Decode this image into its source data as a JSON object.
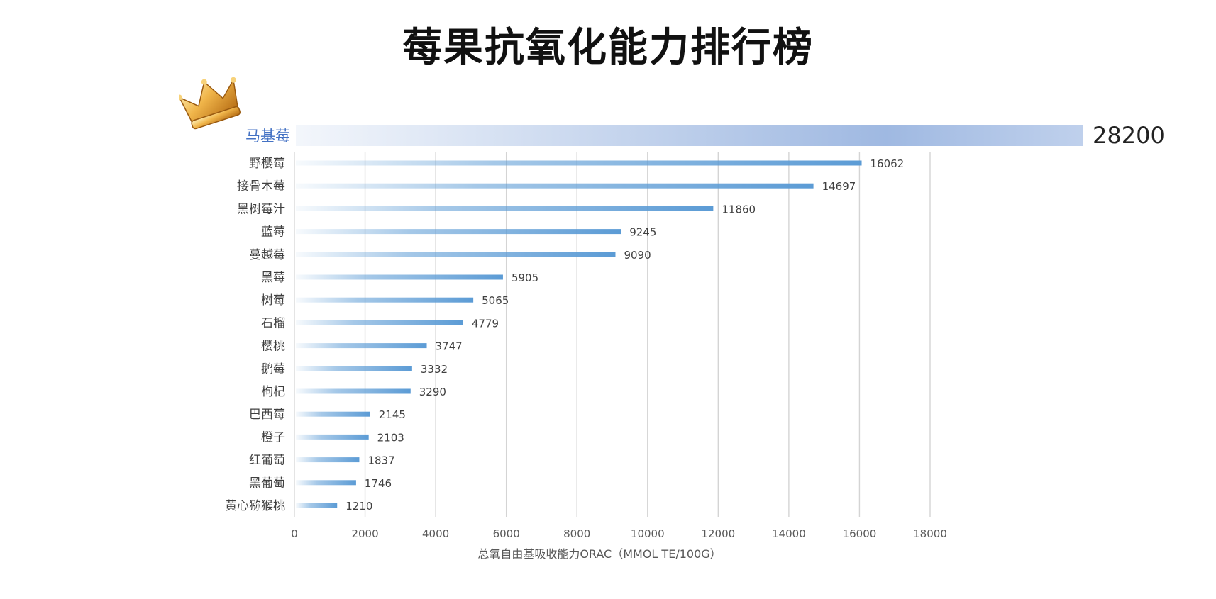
{
  "page": {
    "title": "莓果抗氧化能力排行榜"
  },
  "icons": {
    "crown": "crown-icon"
  },
  "colors": {
    "bar": "#5b9bd5",
    "bar_top": "#9ab5e0",
    "top_label": "#4472c4",
    "grid": "#d4d4d4",
    "text": "#404040"
  },
  "chart_data": {
    "type": "bar",
    "orientation": "horizontal",
    "title": "莓果抗氧化能力排行榜",
    "xlabel": "总氧自由基吸收能力ORAC（MMOL TE/100G）",
    "ylabel": "",
    "xlim": [
      0,
      18000
    ],
    "x_ticks": [
      0,
      2000,
      4000,
      6000,
      8000,
      10000,
      12000,
      14000,
      16000,
      18000
    ],
    "grid": true,
    "highlight": {
      "category": "马基莓",
      "value": 28200,
      "label": "28200"
    },
    "categories": [
      "野樱莓",
      "接骨木莓",
      "黑树莓汁",
      "蓝莓",
      "蔓越莓",
      "黑莓",
      "树莓",
      "石榴",
      "樱桃",
      "鹅莓",
      "枸杞",
      "巴西莓",
      "橙子",
      "红葡萄",
      "黑葡萄",
      "黄心猕猴桃"
    ],
    "values": [
      16062,
      14697,
      11860,
      9245,
      9090,
      5905,
      5065,
      4779,
      3747,
      3332,
      3290,
      2145,
      2103,
      1837,
      1746,
      1210
    ]
  }
}
